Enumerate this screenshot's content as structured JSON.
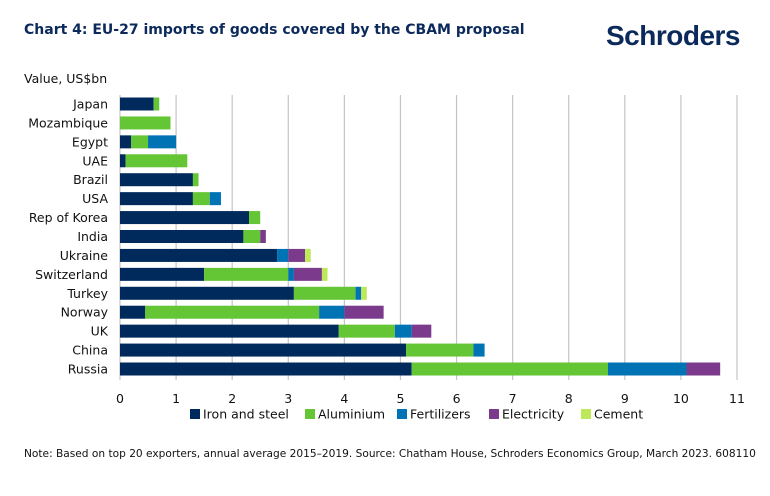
{
  "title": "Chart 4: EU-27 imports of goods covered by the CBAM proposal",
  "logo": "Schroders",
  "note": "Note: Based on top 20 exporters, annual average 2015–2019. Source: Chatham House, Schroders Economics Group, March 2023. 608110",
  "chart_data": {
    "type": "bar",
    "orientation": "horizontal",
    "stacked": true,
    "title": "Chart 4: EU-27 imports of goods covered by the CBAM proposal",
    "ylabel": "Value, US$bn",
    "xlabel": "",
    "xlim": [
      0,
      11
    ],
    "xticks": [
      "0",
      "1",
      "2",
      "3",
      "4",
      "5",
      "6",
      "7",
      "8",
      "9",
      "10",
      "11"
    ],
    "grid": true,
    "legend_position": "bottom",
    "categories": [
      "Japan",
      "Mozambique",
      "Egypt",
      "UAE",
      "Brazil",
      "USA",
      "Rep of Korea",
      "India",
      "Ukraine",
      "Switzerland",
      "Turkey",
      "Norway",
      "UK",
      "China",
      "Russia"
    ],
    "series": [
      {
        "name": "Iron and steel",
        "color": "#002a5c",
        "values": [
          0.6,
          0,
          0.2,
          0.1,
          1.3,
          1.3,
          2.3,
          2.2,
          2.8,
          1.5,
          3.1,
          0.45,
          3.9,
          5.1,
          5.2
        ]
      },
      {
        "name": "Aluminium",
        "color": "#65c635",
        "values": [
          0.1,
          0.9,
          0.3,
          1.1,
          0.1,
          0.3,
          0.2,
          0.3,
          0,
          1.5,
          1.1,
          3.1,
          1.0,
          1.2,
          3.5
        ]
      },
      {
        "name": "Fertilizers",
        "color": "#0073b5",
        "values": [
          0,
          0,
          0.5,
          0,
          0,
          0.2,
          0,
          0,
          0.2,
          0.1,
          0.1,
          0.45,
          0.3,
          0.2,
          1.4
        ]
      },
      {
        "name": "Electricity",
        "color": "#7b3a8b",
        "values": [
          0,
          0,
          0,
          0,
          0,
          0,
          0,
          0.1,
          0.3,
          0.5,
          0,
          0.7,
          0.35,
          0,
          0.6
        ]
      },
      {
        "name": "Cement",
        "color": "#bde85a",
        "values": [
          0,
          0,
          0,
          0,
          0,
          0,
          0,
          0,
          0.1,
          0.1,
          0.1,
          0,
          0,
          0,
          0
        ]
      }
    ]
  }
}
